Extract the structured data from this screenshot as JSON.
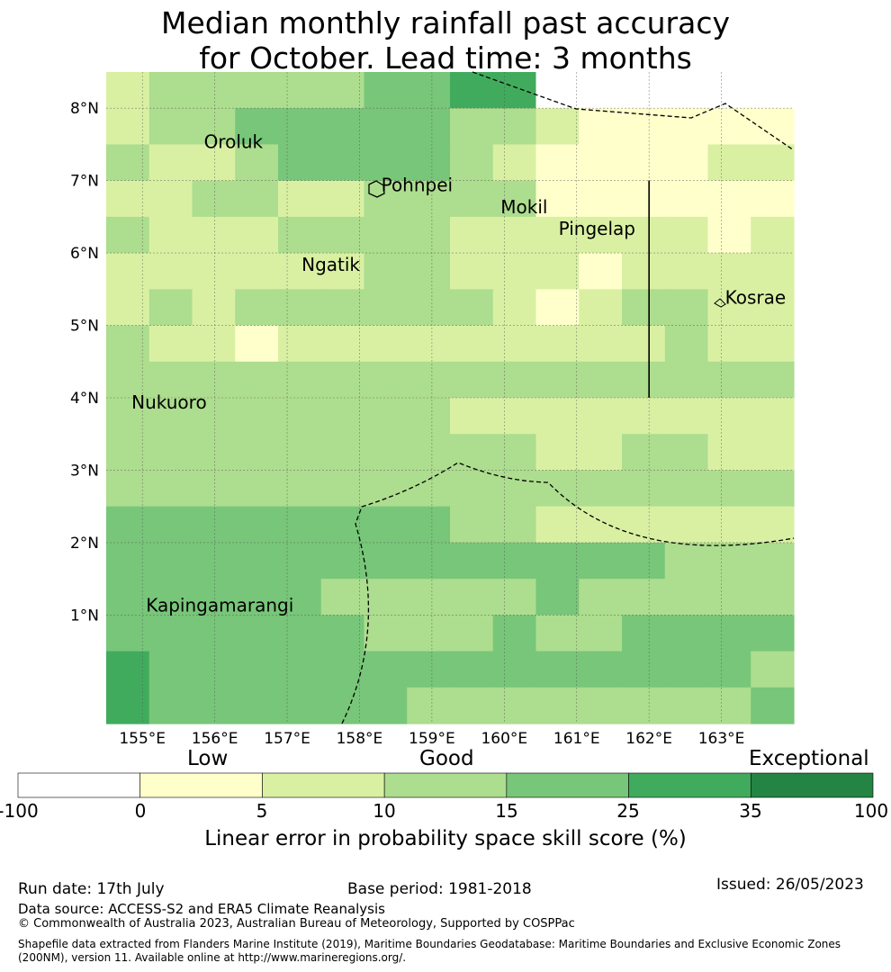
{
  "title_line1": "Median monthly rainfall past accuracy",
  "title_line2": "for October. Lead time: 3 months",
  "map": {
    "lon_range": [
      154.5,
      164.0
    ],
    "lat_range": [
      -0.5,
      8.5
    ],
    "lon_labels": [
      "155°E",
      "156°E",
      "157°E",
      "158°E",
      "159°E",
      "160°E",
      "161°E",
      "162°E",
      "163°E"
    ],
    "lat_labels": [
      "8°N",
      "7°N",
      "6°N",
      "5°N",
      "4°N",
      "3°N",
      "2°N",
      "1°N"
    ],
    "places": [
      {
        "name": "Oroluk",
        "lon": 155.85,
        "lat": 7.45
      },
      {
        "name": "Pohnpei",
        "lon": 158.3,
        "lat": 6.85
      },
      {
        "name": "Mokil",
        "lon": 159.95,
        "lat": 6.55
      },
      {
        "name": "Pingelap",
        "lon": 160.75,
        "lat": 6.25
      },
      {
        "name": "Ngatik",
        "lon": 157.2,
        "lat": 5.75
      },
      {
        "name": "Kosrae",
        "lon": 163.05,
        "lat": 5.3
      },
      {
        "name": "Nukuoro",
        "lon": 154.85,
        "lat": 3.85
      },
      {
        "name": "Kapingamarangi",
        "lon": 155.05,
        "lat": 1.05
      }
    ],
    "grid_rows": [
      "2333334455000000",
      "2334444433211111",
      "3223444432111122",
      "2233223333111111",
      "3222333322222212",
      "2222223322212222",
      "2323333332123322",
      "3221222222222322",
      "3333333333333333",
      "3333333322222222",
      "3333333333223322",
      "3333333333333333",
      "4444444433222222",
      "4444444444444333",
      "4444433333433333",
      "4444443334334444",
      "5444444444444443",
      "5444444333333334"
    ]
  },
  "colorbar": {
    "categories": [
      "Low",
      "Good",
      "Exceptional"
    ],
    "ticks": [
      "-100",
      "0",
      "5",
      "10",
      "15",
      "25",
      "35",
      "100"
    ],
    "colors": [
      "#ffffff",
      "#ffffcc",
      "#d9f0a3",
      "#addd8e",
      "#78c679",
      "#41ab5d",
      "#238443"
    ],
    "label": "Linear error in probability space skill score (%)"
  },
  "footer": {
    "run_date": "Run date: 17th July",
    "base_period": "Base period: 1981-2018",
    "issued": "Issued: 26/05/2023",
    "data_source": "Data source: ACCESS-S2 and ERA5 Climate Reanalysis",
    "copyright": "© Commonwealth of Australia 2023, Australian Bureau of Meteorology, Supported by COSPPac",
    "shapefile": "Shapefile data extracted from Flanders Marine Institute (2019), Maritime Boundaries Geodatabase: Maritime Boundaries and Exclusive Economic Zones (200NM), version 11. Available online at http://www.marineregions.org/."
  }
}
